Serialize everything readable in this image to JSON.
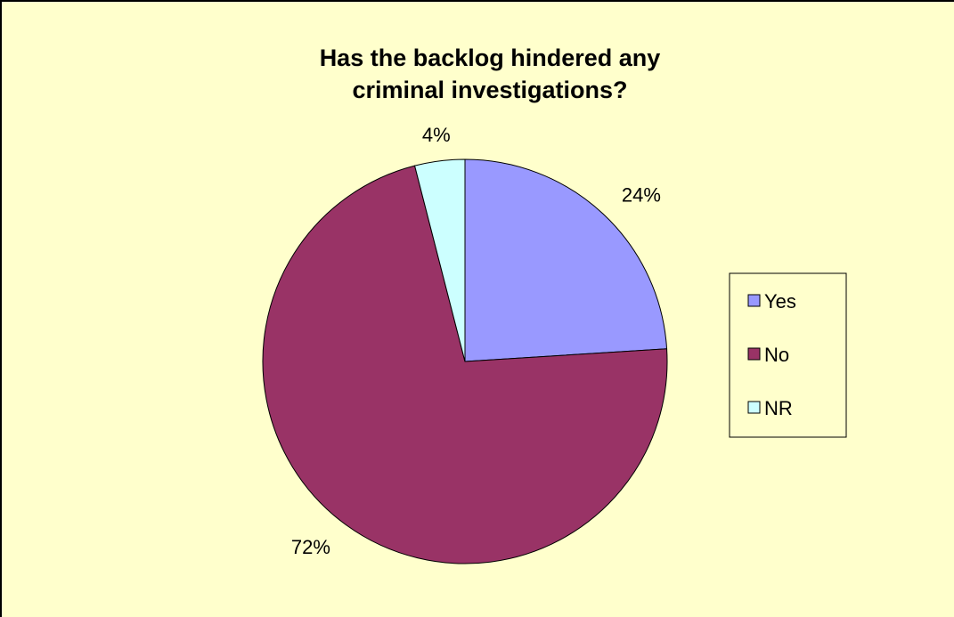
{
  "chart_data": {
    "type": "pie",
    "title": "Has the backlog hindered any criminal investigations?",
    "title_lines": [
      "Has the backlog hindered any",
      "criminal investigations?"
    ],
    "categories": [
      "Yes",
      "No",
      "NR"
    ],
    "values": [
      24,
      72,
      4
    ],
    "labels": [
      "24%",
      "72%",
      "4%"
    ],
    "colors": [
      "#9999ff",
      "#993366",
      "#ccffff"
    ],
    "background": "#ffffcc",
    "legend_position": "right"
  }
}
